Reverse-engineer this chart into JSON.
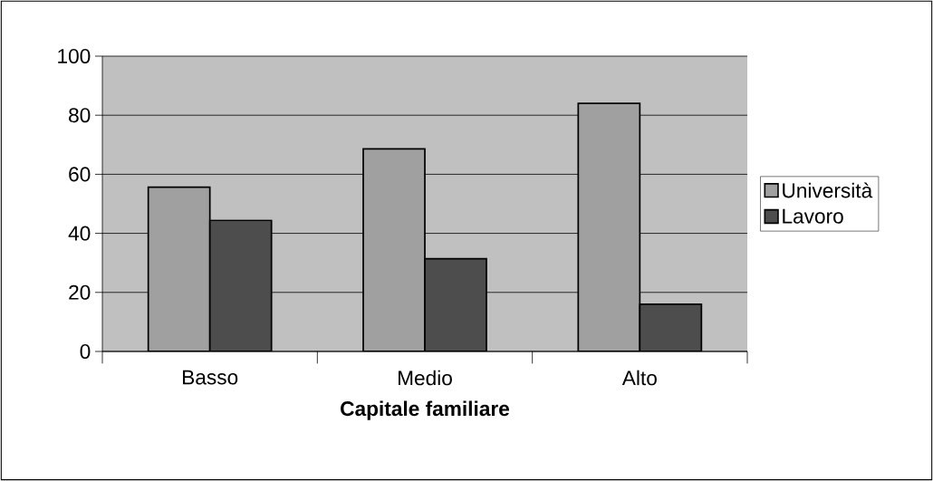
{
  "chart_data": {
    "type": "bar",
    "xlabel": "Capitale familiare",
    "categories": [
      "Basso",
      "Medio",
      "Alto"
    ],
    "series": [
      {
        "name": "Università",
        "color": "#a0a0a0",
        "values": [
          55.6,
          68.6,
          84
        ]
      },
      {
        "name": "Lavoro",
        "color": "#4d4d4d",
        "values": [
          44.4,
          31.4,
          16
        ]
      }
    ],
    "ylim": [
      0,
      100
    ],
    "yticks": [
      0,
      20,
      40,
      60,
      80,
      100
    ],
    "grid": "y",
    "legend": "right"
  }
}
